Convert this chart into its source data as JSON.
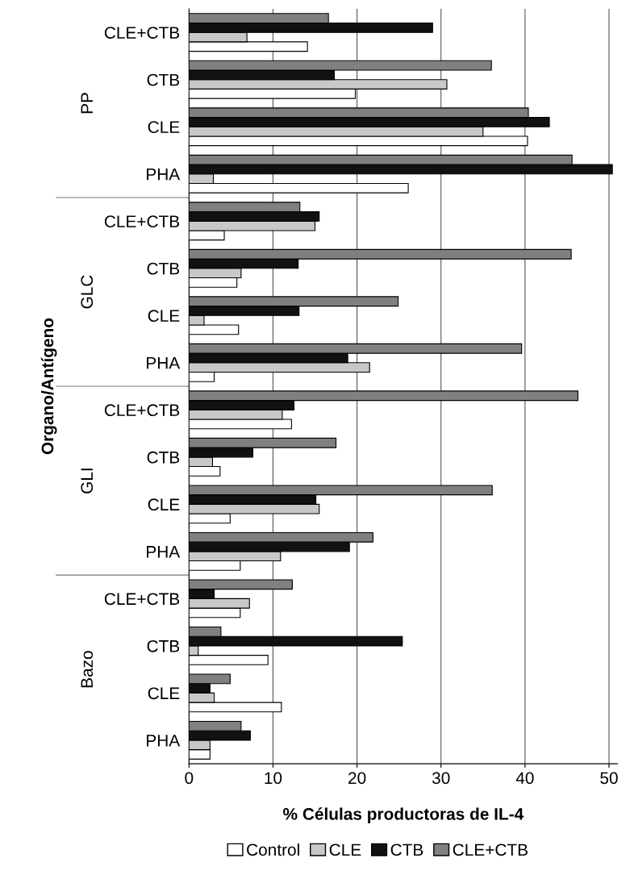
{
  "chart_data": {
    "type": "bar",
    "orientation": "horizontal",
    "categories": [
      "CLE+CTB",
      "CTB",
      "CLE",
      "PHA",
      "CLE+CTB",
      "CTB",
      "CLE",
      "PHA",
      "CLE+CTB",
      "CTB",
      "CLE",
      "PHA",
      "CLE+CTB",
      "CTB",
      "CLE",
      "PHA"
    ],
    "series": [
      {
        "name": "Control",
        "color": "#ffffff",
        "values": [
          14.1,
          19.8,
          40.3,
          26.1,
          4.2,
          5.7,
          5.9,
          3.0,
          12.2,
          3.7,
          4.9,
          6.1,
          6.1,
          9.4,
          11.0,
          2.5
        ]
      },
      {
        "name": "CLE",
        "color": "#c8c8c8",
        "values": [
          6.9,
          30.7,
          35.0,
          2.9,
          15.0,
          6.2,
          1.8,
          21.5,
          11.1,
          2.8,
          15.5,
          10.9,
          7.2,
          1.1,
          3.0,
          2.5
        ]
      },
      {
        "name": "CTB",
        "color": "#111111",
        "values": [
          29.0,
          17.3,
          42.9,
          50.4,
          15.5,
          13.0,
          13.1,
          18.9,
          12.5,
          7.6,
          15.1,
          19.1,
          3.0,
          25.4,
          2.5,
          7.3
        ]
      },
      {
        "name": "CLE+CTB",
        "color": "#808080",
        "values": [
          16.6,
          36.0,
          40.4,
          45.6,
          13.2,
          45.5,
          24.9,
          39.6,
          46.3,
          17.5,
          36.1,
          21.9,
          12.3,
          3.8,
          4.9,
          6.2
        ]
      }
    ],
    "xlabel": "% Células productoras de IL-4",
    "ylabel": "Organo/Antígeno",
    "annotations": [
      "PP",
      "GLC",
      "GLI",
      "Bazo"
    ],
    "xlim": [
      0,
      51
    ],
    "xticks": [
      0,
      10,
      20,
      30,
      40,
      50
    ],
    "grid": "x",
    "legend": "bottom"
  }
}
